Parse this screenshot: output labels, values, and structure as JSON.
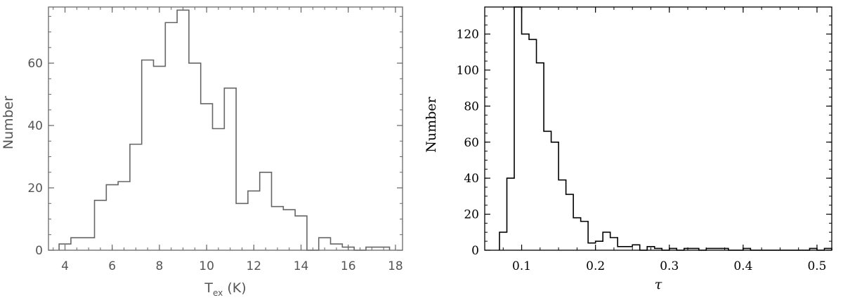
{
  "chart_data": [
    {
      "type": "histogram",
      "title": "",
      "xlabel": "T",
      "xlabel_sub": "ex",
      "xlabel_unit": "(K)",
      "ylabel": "Number",
      "xlim": [
        3.3,
        18.3
      ],
      "ylim": [
        0,
        78
      ],
      "xticks": [
        "4",
        "6",
        "8",
        "10",
        "12",
        "14",
        "16",
        "18"
      ],
      "yticks": [
        "0",
        "20",
        "40",
        "60"
      ],
      "bin_width": 0.5,
      "bin_starts": [
        3.75,
        4.25,
        4.75,
        5.25,
        5.75,
        6.25,
        6.75,
        7.25,
        7.75,
        8.25,
        8.75,
        9.25,
        9.75,
        10.25,
        10.75,
        11.25,
        11.75,
        12.25,
        12.75,
        13.25,
        13.75,
        14.25,
        14.75,
        15.25,
        15.75,
        16.25,
        16.75,
        17.25
      ],
      "counts": [
        2,
        4,
        4,
        16,
        21,
        22,
        34,
        61,
        59,
        73,
        77,
        60,
        47,
        39,
        52,
        15,
        19,
        25,
        14,
        13,
        11,
        0,
        4,
        2,
        1,
        0,
        1,
        1
      ],
      "color": "#666666"
    },
    {
      "type": "histogram",
      "title": "",
      "xlabel": "τ",
      "ylabel": "Number",
      "xlim": [
        0.05,
        0.52
      ],
      "ylim": [
        0,
        135
      ],
      "xticks": [
        "0.1",
        "0.2",
        "0.3",
        "0.4",
        "0.5"
      ],
      "yticks": [
        "0",
        "20",
        "40",
        "60",
        "80",
        "100",
        "120"
      ],
      "bin_width": 0.01,
      "bin_starts": [
        0.07,
        0.08,
        0.09,
        0.1,
        0.11,
        0.12,
        0.13,
        0.14,
        0.15,
        0.16,
        0.17,
        0.18,
        0.19,
        0.2,
        0.21,
        0.22,
        0.23,
        0.24,
        0.25,
        0.26,
        0.27,
        0.28,
        0.29,
        0.3,
        0.31,
        0.32,
        0.33,
        0.34,
        0.35,
        0.36,
        0.37,
        0.38,
        0.39,
        0.4,
        0.41,
        0.42,
        0.43,
        0.44,
        0.45,
        0.46,
        0.47,
        0.48,
        0.49,
        0.5,
        0.51
      ],
      "counts": [
        10,
        40,
        135,
        120,
        117,
        104,
        66,
        60,
        39,
        31,
        18,
        16,
        4,
        5,
        10,
        7,
        2,
        2,
        3,
        0,
        2,
        1,
        0,
        1,
        0,
        1,
        1,
        0,
        1,
        1,
        1,
        0,
        0,
        1,
        0,
        0,
        0,
        0,
        0,
        0,
        0,
        0,
        1,
        0,
        1
      ],
      "color": "#000000"
    }
  ]
}
